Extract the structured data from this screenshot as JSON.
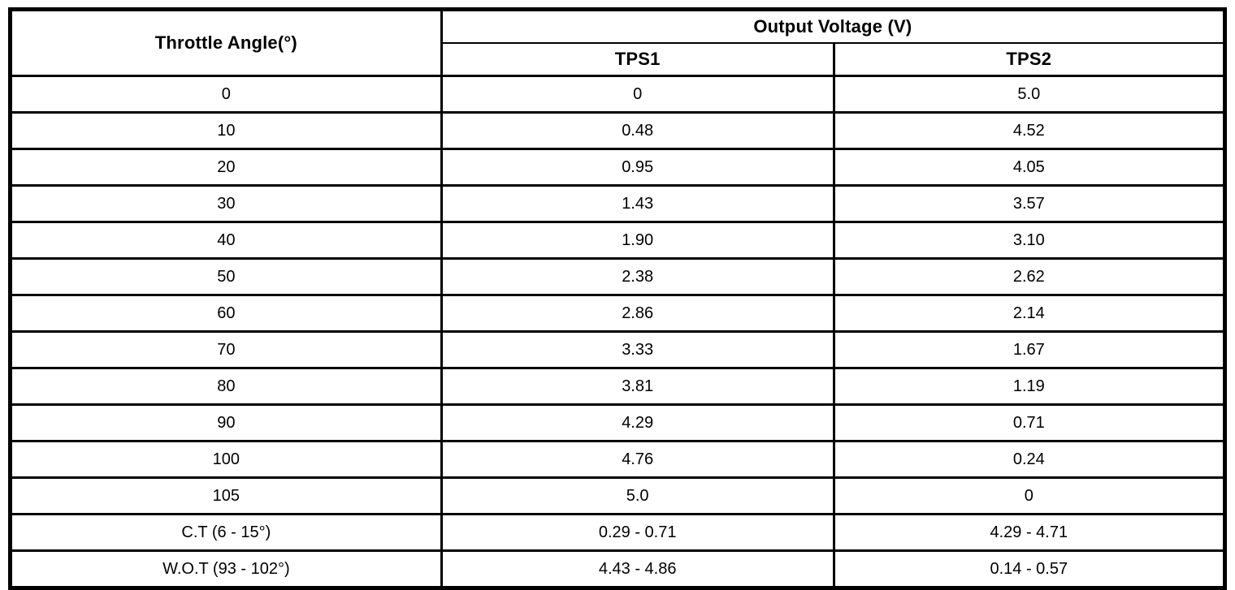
{
  "table": {
    "angle_header": "Throttle Angle(°)",
    "group_header": "Output Voltage (V)",
    "sub_headers": [
      "TPS1",
      "TPS2"
    ],
    "rows": [
      {
        "angle": "0",
        "tps1": "0",
        "tps2": "5.0"
      },
      {
        "angle": "10",
        "tps1": "0.48",
        "tps2": "4.52"
      },
      {
        "angle": "20",
        "tps1": "0.95",
        "tps2": "4.05"
      },
      {
        "angle": "30",
        "tps1": "1.43",
        "tps2": "3.57"
      },
      {
        "angle": "40",
        "tps1": "1.90",
        "tps2": "3.10"
      },
      {
        "angle": "50",
        "tps1": "2.38",
        "tps2": "2.62"
      },
      {
        "angle": "60",
        "tps1": "2.86",
        "tps2": "2.14"
      },
      {
        "angle": "70",
        "tps1": "3.33",
        "tps2": "1.67"
      },
      {
        "angle": "80",
        "tps1": "3.81",
        "tps2": "1.19"
      },
      {
        "angle": "90",
        "tps1": "4.29",
        "tps2": "0.71"
      },
      {
        "angle": "100",
        "tps1": "4.76",
        "tps2": "0.24"
      },
      {
        "angle": "105",
        "tps1": "5.0",
        "tps2": "0"
      },
      {
        "angle": "C.T (6 - 15°)",
        "tps1": "0.29 - 0.71",
        "tps2": "4.29 - 4.71"
      },
      {
        "angle": "W.O.T (93 - 102°)",
        "tps1": "4.43 - 4.86",
        "tps2": "0.14 - 0.57"
      }
    ]
  },
  "colors": {
    "border": "#000000",
    "background": "#ffffff",
    "text": "#000000"
  }
}
